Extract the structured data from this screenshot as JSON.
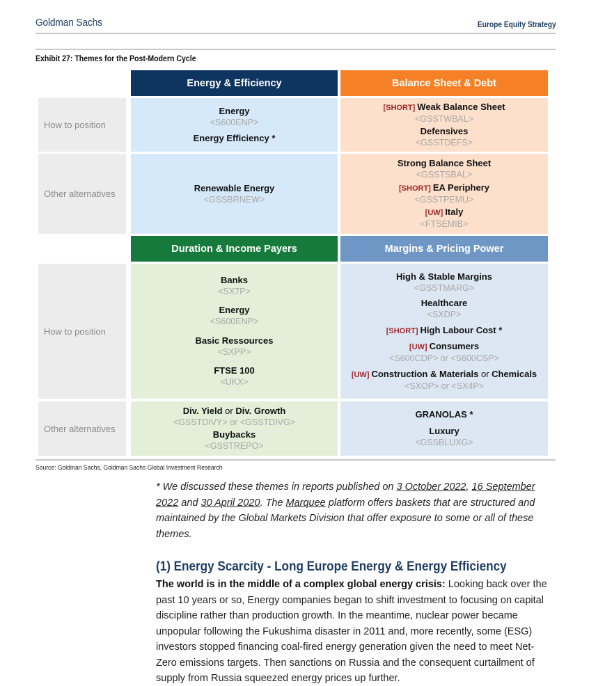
{
  "header": {
    "brand": "Goldman Sachs",
    "series": "Europe Equity Strategy"
  },
  "exhibit": {
    "title": "Exhibit 27: Themes for the Post-Modern Cycle"
  },
  "colors": {
    "energy": "#0d3560",
    "balance": "#f58025",
    "duration": "#157a3c",
    "margins": "#6f97c6",
    "energy_cell": "#d6e9fa",
    "balance_cell": "#fde0cc",
    "duration_cell": "#e3efd8",
    "margins_cell": "#dde7f3",
    "label_cell": "#ececec",
    "flag": "#a0282b"
  },
  "row_labels": {
    "how": "How to position",
    "other": "Other alternatives"
  },
  "themes": {
    "energy": {
      "title": "Energy & Efficiency",
      "how": [
        {
          "title": "Energy",
          "code": "<S600ENP>"
        },
        {
          "title": "Energy Efficiency *"
        }
      ],
      "other": [
        {
          "title": "Renewable Energy",
          "code": "<GSSBRNEW>"
        }
      ]
    },
    "balance": {
      "title": "Balance Sheet & Debt",
      "how": [
        {
          "prefix": "[SHORT]",
          "title": "Weak Balance Sheet",
          "code": "<GSSTWBAL>"
        },
        {
          "title": "Defensives",
          "code": "<GSSTDEFS>"
        }
      ],
      "other": [
        {
          "title": "Strong Balance Sheet",
          "code": "<GSSTSBAL>"
        },
        {
          "prefix": "[SHORT]",
          "title": "EA Periphery",
          "code": "<GSSTPEMU>"
        },
        {
          "prefix": "[UW]",
          "title": "Italy",
          "code": "<FTSEMIB>"
        }
      ]
    },
    "duration": {
      "title": "Duration & Income Payers",
      "how": [
        {
          "title": "Banks",
          "code": "<SX7P>"
        },
        {
          "title": "Energy",
          "code": "<S600ENP>"
        },
        {
          "title": "Basic Ressources",
          "code": "<SXPP>"
        },
        {
          "title": "FTSE 100",
          "code": "<UKX>"
        }
      ],
      "other": [
        {
          "title": "Div. Yield",
          "conj": " or ",
          "title2": "Div. Growth",
          "code": "<GSSTDIVY> or <GSSTDIVG>"
        },
        {
          "title": "Buybacks",
          "code": "<GSSTREPO>"
        }
      ]
    },
    "margins": {
      "title": "Margins & Pricing Power",
      "how": [
        {
          "title": "High & Stable Margins",
          "code": "<GSSTMARG>"
        },
        {
          "title": "Healthcare",
          "code": "<SXDP>"
        },
        {
          "prefix": "[SHORT]",
          "title": "High Labour Cost *"
        },
        {
          "prefix": "[UW]",
          "title": "Consumers",
          "code": "<S600CDP> or <S600CSP>"
        },
        {
          "prefix": "[UW]",
          "title": "Construction & Materials",
          "conj": " or ",
          "title2": "Chemicals",
          "code": "<SXOP> or <SX4P>"
        }
      ],
      "other": [
        {
          "title": "GRANOLAS *"
        },
        {
          "title": "Luxury",
          "code": "<GSSBLUXG>"
        }
      ]
    }
  },
  "source": "Source: Goldman Sachs, Goldman Sachs Global Investment Research",
  "note": {
    "a": "* We discussed these themes in reports published on ",
    "l1": "3 October 2022",
    "b": ", ",
    "l2": "16 September 2022",
    "c": " and ",
    "l3": "30 April 2020",
    "d": ". The ",
    "l4": "Marquee",
    "e": " platform offers baskets that are structured and maintained by the Global Markets Division that offer exposure to some or all of these themes."
  },
  "section": {
    "heading": "(1) Energy Scarcity - Long Europe Energy & Energy Efficiency",
    "lead": "The world is in the middle of a complex global energy crisis:",
    "text": " Looking back over the past 10 years or so, Energy companies began to shift investment to focusing on capital discipline rather than production growth. In the meantime, nuclear power became unpopular following the Fukushima disaster in 2011 and, more recently, some (ESG) investors stopped financing coal-fired energy generation given the need to meet Net-Zero emissions targets. Then sanctions on Russia and the consequent curtailment of supply from Russia squeezed energy prices up further."
  }
}
